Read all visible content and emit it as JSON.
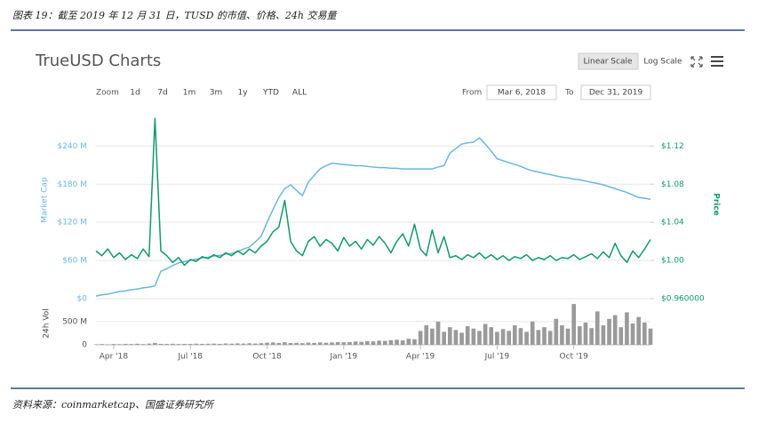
{
  "header": {
    "title": "图表 19：截至 2019 年 12 月 31 日，TUSD 的市值、价格、24h 交易量",
    "source": "资料来源：coinmarketcap、国盛证券研究所"
  },
  "toolbar": {
    "scales": [
      "Linear Scale",
      "Log Scale"
    ],
    "zoom_label": "Zoom",
    "zoom": [
      "1d",
      "7d",
      "1m",
      "3m",
      "1y",
      "YTD",
      "ALL"
    ],
    "from_label": "From",
    "from": "Mar 6, 2018",
    "to_label": "To",
    "to": "Dec 31, 2019"
  },
  "chart_data": {
    "type": "line",
    "title": "TrueUSD Charts",
    "categories": [
      null,
      null,
      null,
      "Apr '18",
      null,
      null,
      null,
      null,
      null,
      null,
      null,
      null,
      null,
      null,
      null,
      null,
      "Jul '18",
      null,
      null,
      null,
      null,
      null,
      null,
      null,
      null,
      null,
      null,
      null,
      null,
      "Oct '18",
      null,
      null,
      null,
      null,
      null,
      null,
      null,
      null,
      null,
      null,
      null,
      null,
      "Jan '19",
      null,
      null,
      null,
      null,
      null,
      null,
      null,
      null,
      null,
      null,
      null,
      null,
      "Apr '19",
      null,
      null,
      null,
      null,
      null,
      null,
      null,
      null,
      null,
      null,
      null,
      null,
      "Jul '19",
      null,
      null,
      null,
      null,
      null,
      null,
      null,
      null,
      null,
      null,
      null,
      null,
      "Oct '19",
      null,
      null,
      null,
      null,
      null,
      null,
      null,
      null,
      null,
      null,
      null,
      null,
      null
    ],
    "series": [
      {
        "name": "Market Cap",
        "type": "line",
        "axis": "y",
        "color": "#6ab7e0",
        "values": [
          4,
          6,
          7,
          9,
          11,
          12,
          14,
          15,
          17,
          18,
          20,
          43,
          47,
          52,
          56,
          58,
          60,
          62,
          64,
          65,
          67,
          68,
          70,
          71,
          74,
          78,
          81,
          89,
          98,
          120,
          140,
          159,
          173,
          179,
          170,
          162,
          183,
          194,
          204,
          209,
          213,
          212,
          211,
          210,
          209,
          209,
          208,
          207,
          206,
          206,
          205,
          205,
          204,
          204,
          204,
          204,
          204,
          204,
          207,
          209,
          229,
          236,
          243,
          245,
          246,
          253,
          243,
          232,
          220,
          217,
          214,
          211,
          208,
          204,
          201,
          199,
          197,
          195,
          193,
          191,
          190,
          188,
          187,
          185,
          183,
          181,
          179,
          176,
          173,
          170,
          167,
          163,
          159,
          158,
          156
        ]
      },
      {
        "name": "Price",
        "type": "line",
        "axis": "y2",
        "color": "#119a68",
        "values": [
          1.01,
          1.005,
          1.012,
          1.003,
          1.008,
          1.001,
          1.006,
          1.002,
          1.012,
          1.004,
          1.149,
          1.01,
          1.005,
          0.998,
          1.003,
          0.995,
          1.001,
          0.999,
          1.004,
          1.002,
          1.006,
          1.003,
          1.008,
          1.005,
          1.01,
          1.006,
          1.012,
          1.008,
          1.015,
          1.02,
          1.03,
          1.035,
          1.063,
          1.02,
          1.01,
          1.005,
          1.02,
          1.025,
          1.015,
          1.022,
          1.018,
          1.01,
          1.024,
          1.015,
          1.02,
          1.012,
          1.022,
          1.016,
          1.025,
          1.018,
          1.008,
          1.02,
          1.028,
          1.015,
          1.038,
          1.012,
          1.005,
          1.032,
          1.008,
          1.025,
          1.003,
          1.005,
          1.001,
          1.006,
          1.003,
          1.008,
          1.002,
          1.006,
          1.001,
          1.005,
          1.0,
          1.004,
          1.002,
          1.006,
          1.0,
          1.003,
          1.001,
          1.005,
          1.0,
          1.003,
          1.002,
          1.006,
          1.001,
          1.004,
          1.007,
          1.002,
          1.009,
          1.003,
          1.018,
          1.005,
          0.998,
          1.01,
          1.003,
          1.012,
          1.022
        ]
      },
      {
        "name": "24h Vol",
        "type": "bar",
        "axis": "y3",
        "color": "#9a9a9a",
        "values": [
          12,
          15,
          10,
          18,
          14,
          20,
          16,
          22,
          15,
          25,
          40,
          20,
          18,
          22,
          16,
          20,
          18,
          24,
          20,
          22,
          25,
          20,
          28,
          24,
          30,
          26,
          32,
          28,
          35,
          45,
          50,
          40,
          55,
          38,
          42,
          35,
          48,
          40,
          52,
          45,
          50,
          58,
          55,
          60,
          70,
          65,
          80,
          75,
          90,
          85,
          100,
          110,
          95,
          130,
          120,
          300,
          420,
          350,
          500,
          280,
          380,
          320,
          260,
          400,
          350,
          300,
          450,
          380,
          280,
          340,
          300,
          420,
          360,
          280,
          500,
          320,
          380,
          300,
          560,
          420,
          350,
          880,
          400,
          480,
          360,
          720,
          420,
          560,
          640,
          380,
          700,
          460,
          600,
          480,
          350
        ]
      }
    ],
    "ylim": [
      0,
      288
    ],
    "yticks": [
      {
        "value": 0,
        "label": "$0"
      },
      {
        "value": 60,
        "label": "$60 M"
      },
      {
        "value": 120,
        "label": "$120 M"
      },
      {
        "value": 180,
        "label": "$180 M"
      },
      {
        "value": 240,
        "label": "$240 M"
      }
    ],
    "y2lim": [
      0.96,
      1.152
    ],
    "y2ticks": [
      {
        "value": 0.96,
        "label": "$0.960000"
      },
      {
        "value": 1.0,
        "label": "$1.00"
      },
      {
        "value": 1.04,
        "label": "$1.04"
      },
      {
        "value": 1.08,
        "label": "$1.08"
      },
      {
        "value": 1.12,
        "label": "$1.12"
      }
    ],
    "y3lim": [
      0,
      920
    ],
    "y3ticks": [
      0,
      {
        "value": 500,
        "label": "500 M"
      }
    ],
    "grid": true
  }
}
